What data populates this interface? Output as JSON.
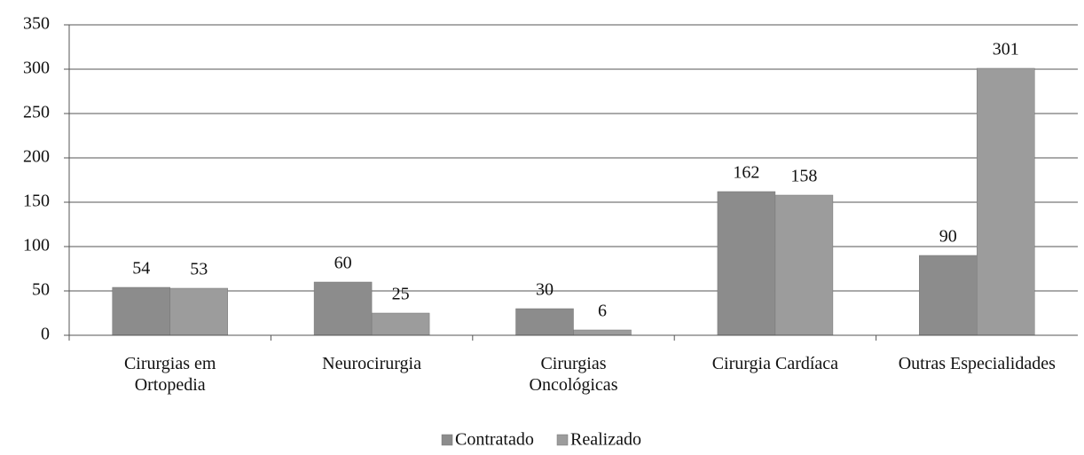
{
  "chart_data": {
    "type": "bar",
    "categories": [
      "Cirurgias em\nOrtopedia",
      "Neurocirurgia",
      "Cirurgias\nOncológicas",
      "Cirurgia Cardíaca",
      "Outras Especialidades"
    ],
    "series": [
      {
        "name": "Contratado",
        "color": "#8c8c8c",
        "values": [
          54,
          60,
          30,
          162,
          90
        ]
      },
      {
        "name": "Realizado",
        "color": "#9c9c9c",
        "values": [
          53,
          25,
          6,
          158,
          301
        ]
      }
    ],
    "ylim": [
      0,
      350
    ],
    "yticks": [
      0,
      50,
      100,
      150,
      200,
      250,
      300,
      350
    ],
    "grid": true,
    "legend": "bottom"
  }
}
